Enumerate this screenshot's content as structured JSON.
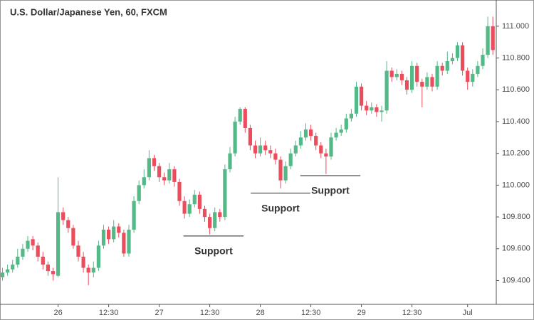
{
  "chart_data": {
    "type": "candlestick",
    "title": "U.S. Dollar/Japanese Yen, 60, FXCM",
    "categories": [
      null,
      null,
      null,
      null,
      null,
      null,
      null,
      null,
      null,
      null,
      null,
      "26",
      null,
      null,
      null,
      null,
      null,
      null,
      null,
      null,
      null,
      "12:30",
      null,
      null,
      null,
      null,
      null,
      null,
      null,
      null,
      null,
      "27",
      null,
      null,
      null,
      null,
      null,
      null,
      null,
      null,
      null,
      "12:30",
      null,
      null,
      null,
      null,
      null,
      null,
      null,
      null,
      null,
      "28",
      null,
      null,
      null,
      null,
      null,
      null,
      null,
      null,
      null,
      "12:30",
      null,
      null,
      null,
      null,
      null,
      null,
      null,
      null,
      null,
      "29",
      null,
      null,
      null,
      null,
      null,
      null,
      null,
      null,
      null,
      "12:30",
      null,
      null,
      null,
      null,
      null,
      null,
      null,
      null,
      null,
      null,
      "Jul",
      null,
      null,
      null,
      null,
      null
    ],
    "open": [
      109.42,
      109.45,
      109.47,
      109.5,
      109.55,
      109.6,
      109.66,
      109.62,
      109.55,
      109.5,
      109.46,
      109.43,
      109.83,
      109.78,
      109.73,
      109.62,
      109.55,
      109.48,
      109.45,
      109.48,
      109.62,
      109.72,
      109.66,
      109.74,
      109.7,
      109.57,
      109.72,
      109.9,
      110.0,
      110.05,
      110.17,
      110.12,
      110.05,
      110.03,
      110.1,
      110.02,
      109.9,
      109.82,
      109.88,
      109.94,
      109.85,
      109.8,
      109.73,
      109.83,
      109.8,
      110.1,
      110.2,
      110.4,
      110.48,
      110.36,
      110.25,
      110.2,
      110.25,
      110.22,
      110.2,
      110.16,
      110.03,
      110.12,
      110.2,
      110.25,
      110.3,
      110.35,
      110.31,
      110.25,
      110.2,
      110.18,
      110.3,
      110.33,
      110.35,
      110.42,
      110.45,
      110.62,
      110.5,
      110.47,
      110.49,
      110.46,
      110.47,
      110.72,
      110.68,
      110.7,
      110.66,
      110.6,
      110.75,
      110.65,
      110.62,
      110.68,
      110.62,
      110.75,
      110.72,
      110.78,
      110.8,
      110.88,
      110.72,
      110.65,
      110.7,
      110.75,
      110.82,
      111.0
    ],
    "high": [
      109.48,
      109.5,
      109.53,
      109.6,
      109.63,
      109.68,
      109.68,
      109.64,
      109.58,
      109.52,
      109.48,
      110.05,
      109.86,
      109.8,
      109.75,
      109.65,
      109.58,
      109.5,
      109.52,
      109.65,
      109.75,
      109.74,
      109.78,
      109.76,
      109.72,
      109.75,
      109.93,
      110.03,
      110.1,
      110.22,
      110.19,
      110.14,
      110.08,
      110.14,
      110.12,
      110.04,
      109.93,
      109.91,
      109.97,
      109.96,
      109.87,
      109.82,
      109.86,
      109.85,
      110.13,
      110.24,
      110.43,
      110.49,
      110.49,
      110.38,
      110.28,
      110.3,
      110.28,
      110.25,
      110.23,
      110.18,
      110.15,
      110.23,
      110.28,
      110.34,
      110.39,
      110.38,
      110.33,
      110.27,
      110.23,
      110.33,
      110.36,
      110.38,
      110.45,
      110.48,
      110.65,
      110.64,
      110.53,
      110.52,
      110.51,
      110.5,
      110.78,
      110.74,
      110.73,
      110.72,
      110.68,
      110.78,
      110.77,
      110.67,
      110.71,
      110.7,
      110.78,
      110.77,
      110.84,
      110.83,
      110.9,
      110.9,
      110.74,
      110.73,
      110.78,
      110.86,
      111.06,
      111.06
    ],
    "low": [
      109.4,
      109.43,
      109.45,
      109.48,
      109.53,
      109.58,
      109.59,
      109.52,
      109.47,
      109.43,
      109.4,
      109.42,
      109.75,
      109.7,
      109.6,
      109.52,
      109.45,
      109.37,
      109.42,
      109.46,
      109.6,
      109.63,
      109.64,
      109.67,
      109.55,
      109.55,
      109.7,
      109.88,
      109.98,
      110.03,
      110.09,
      110.02,
      110.0,
      110.01,
      109.99,
      109.87,
      109.79,
      109.8,
      109.86,
      109.82,
      109.77,
      109.69,
      109.71,
      109.77,
      109.78,
      110.08,
      110.18,
      110.38,
      110.33,
      110.22,
      110.17,
      110.18,
      110.19,
      110.17,
      110.13,
      109.98,
      110.01,
      110.1,
      110.18,
      110.23,
      110.28,
      110.28,
      110.22,
      110.17,
      110.07,
      110.16,
      110.28,
      110.31,
      110.33,
      110.4,
      110.43,
      110.47,
      110.44,
      110.45,
      110.43,
      110.4,
      110.45,
      110.65,
      110.66,
      110.63,
      110.57,
      110.58,
      110.62,
      110.49,
      110.6,
      110.59,
      110.6,
      110.69,
      110.7,
      110.76,
      110.78,
      110.69,
      110.6,
      110.62,
      110.68,
      110.73,
      110.8,
      110.82
    ],
    "close": [
      109.45,
      109.47,
      109.5,
      109.55,
      109.6,
      109.65,
      109.62,
      109.55,
      109.5,
      109.46,
      109.44,
      109.83,
      109.78,
      109.73,
      109.62,
      109.55,
      109.48,
      109.45,
      109.48,
      109.62,
      109.72,
      109.66,
      109.74,
      109.7,
      109.57,
      109.72,
      109.9,
      110.0,
      110.05,
      110.17,
      110.12,
      110.05,
      110.03,
      110.1,
      110.02,
      109.9,
      109.82,
      109.88,
      109.94,
      109.85,
      109.8,
      109.73,
      109.83,
      109.8,
      110.1,
      110.2,
      110.4,
      110.48,
      110.36,
      110.25,
      110.2,
      110.25,
      110.22,
      110.2,
      110.16,
      110.03,
      110.12,
      110.2,
      110.25,
      110.3,
      110.35,
      110.31,
      110.25,
      110.2,
      110.18,
      110.3,
      110.33,
      110.35,
      110.42,
      110.45,
      110.62,
      110.5,
      110.47,
      110.49,
      110.46,
      110.47,
      110.72,
      110.68,
      110.7,
      110.66,
      110.6,
      110.75,
      110.65,
      110.62,
      110.68,
      110.62,
      110.75,
      110.72,
      110.78,
      110.8,
      110.88,
      110.72,
      110.65,
      110.7,
      110.75,
      110.82,
      111.0,
      110.85
    ],
    "up_color": "#53b987",
    "down_color": "#eb4d5c",
    "ylim": [
      109.25,
      111.165
    ],
    "yticks": [
      {
        "value": 109.4,
        "label": "109.400"
      },
      {
        "value": 109.6,
        "label": "109.600"
      },
      {
        "value": 109.8,
        "label": "109.800"
      },
      {
        "value": 110.0,
        "label": "110.000"
      },
      {
        "value": 110.2,
        "label": "110.200"
      },
      {
        "value": 110.4,
        "label": "110.400"
      },
      {
        "value": 110.6,
        "label": "110.600"
      },
      {
        "value": 110.8,
        "label": "110.800"
      },
      {
        "value": 111.0,
        "label": "111.000"
      }
    ],
    "grid": false,
    "annotations": [
      {
        "text": "Support",
        "y": 109.68,
        "x": [
          35.8,
          47.7
        ]
      },
      {
        "text": "Support",
        "y": 109.95,
        "x": [
          49.1,
          60.9
        ]
      },
      {
        "text": "Support",
        "y": 110.06,
        "x": [
          58.9,
          70.8
        ]
      }
    ]
  }
}
